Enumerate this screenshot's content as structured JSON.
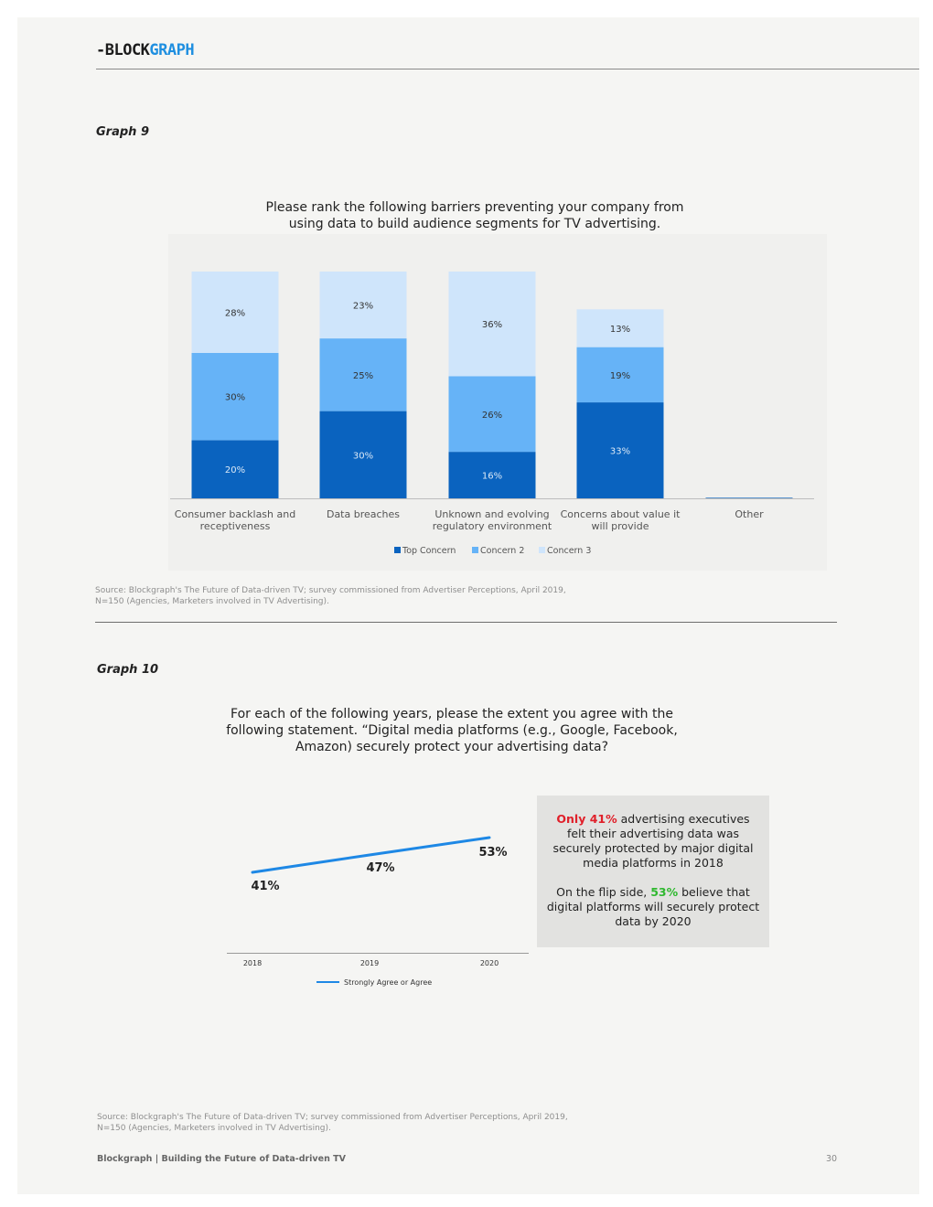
{
  "header": {
    "logo_part1": "-BLOCK",
    "logo_part2": "GRAPH"
  },
  "graph9": {
    "label": "Graph 9",
    "title_line1": "Please rank the following barriers preventing your company from",
    "title_line2": "using data to build audience segments for TV advertising.",
    "source_text": "Source: Blockgraph's The Future of Data-driven TV; survey commissioned from Advertiser Perceptions, April 2019,\nN=150 (Agencies, Marketers involved in TV Advertising)."
  },
  "graph10": {
    "label": "Graph 10",
    "title_line1": "For each of the following years, please the extent you agree with the",
    "title_line2": "following statement. “Digital media platforms (e.g., Google, Facebook,",
    "title_line3": "Amazon) securely protect your advertising data?",
    "callout": {
      "p1_highlight": "Only 41%",
      "p1_rest": " advertising executives felt their advertising data was securely protected by major digital media platforms in 2018",
      "p2_start": "On the flip side, ",
      "p2_highlight": "53%",
      "p2_rest": " believe that digital platforms will securely protect data by 2020"
    },
    "source_text": "Source: Blockgraph's The Future of Data-driven TV; survey commissioned from Advertiser Perceptions, April 2019,\nN=150 (Agencies, Marketers involved in TV Advertising)."
  },
  "footer": {
    "text": "Blockgraph | Building the Future of Data-driven TV",
    "page_number": "30"
  },
  "chart_data": [
    {
      "type": "bar",
      "stacked": true,
      "title": "Please rank the following barriers preventing your company from using data to build audience segments for TV advertising.",
      "categories_lines": [
        [
          "Consumer backlash and",
          "receptiveness"
        ],
        [
          "Data breaches"
        ],
        [
          "Unknown and evolving",
          "regulatory environment"
        ],
        [
          "Concerns about value it",
          "will provide"
        ],
        [
          "Other"
        ]
      ],
      "categories": [
        "Consumer backlash and receptiveness",
        "Data breaches",
        "Unknown and evolving regulatory environment",
        "Concerns about value it will provide",
        "Other"
      ],
      "series": [
        {
          "name": "Top Concern",
          "values": [
            20,
            30,
            16,
            33,
            0.2
          ],
          "labels": [
            "20%",
            "30%",
            "16%",
            "33%",
            ""
          ],
          "color": "#0a63bf",
          "label_color": "#dbe9f7"
        },
        {
          "name": "Concern 2",
          "values": [
            30,
            25,
            26,
            19,
            0
          ],
          "labels": [
            "30%",
            "25%",
            "26%",
            "19%",
            ""
          ],
          "color": "#66b3f7",
          "label_color": "#333333"
        },
        {
          "name": "Concern 3",
          "values": [
            28,
            23,
            36,
            13,
            0
          ],
          "labels": [
            "28%",
            "23%",
            "36%",
            "13%",
            ""
          ],
          "color": "#cfe5fb",
          "label_color": "#333333"
        }
      ],
      "legend": "bottom",
      "grid": false
    },
    {
      "type": "line",
      "x": [
        "2018",
        "2019",
        "2020"
      ],
      "series": [
        {
          "name": "Strongly Agree or Agree",
          "values": [
            41,
            47,
            53
          ],
          "labels": [
            "41%",
            "47%",
            "53%"
          ],
          "color": "#1e88e5"
        }
      ],
      "legend": "bottom",
      "grid": false
    }
  ]
}
